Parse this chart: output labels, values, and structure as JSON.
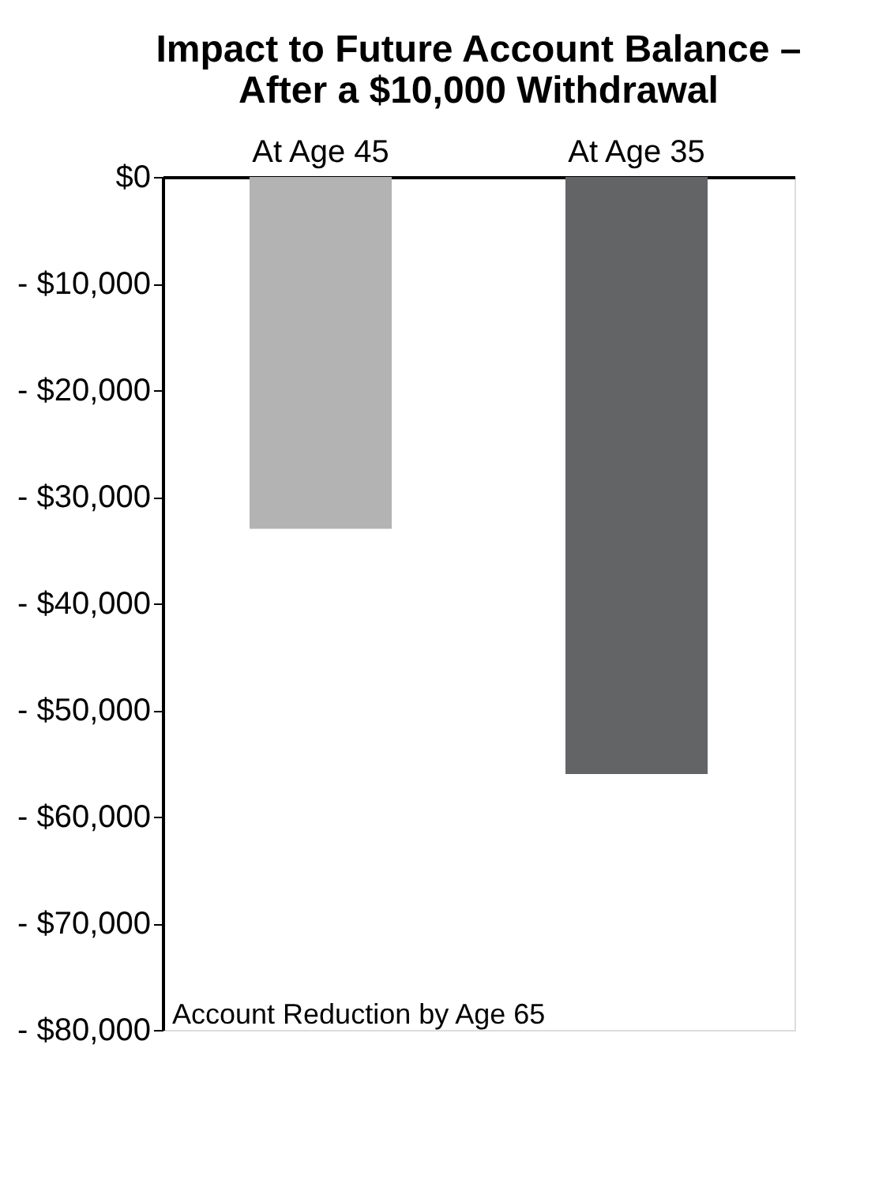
{
  "chart_data": {
    "type": "bar",
    "title": [
      "Impact to Future Account Balance –",
      "After a $10,000 Withdrawal"
    ],
    "xlabel": "Account Reduction by Age 65",
    "categories": [
      "At Age 45",
      "At Age 35"
    ],
    "values": [
      -33000,
      -56000
    ],
    "colors": [
      "#b3b3b3",
      "#636466"
    ],
    "ylim": [
      -80000,
      0
    ],
    "yticks": [
      {
        "value": 0,
        "label": "$0"
      },
      {
        "value": -10000,
        "label": "- $10,000"
      },
      {
        "value": -20000,
        "label": "- $20,000"
      },
      {
        "value": -30000,
        "label": "- $30,000"
      },
      {
        "value": -40000,
        "label": "- $40,000"
      },
      {
        "value": -50000,
        "label": "- $50,000"
      },
      {
        "value": -60000,
        "label": "- $60,000"
      },
      {
        "value": -70000,
        "label": "- $70,000"
      },
      {
        "value": -80000,
        "label": "- $80,000"
      }
    ],
    "grid": false
  }
}
